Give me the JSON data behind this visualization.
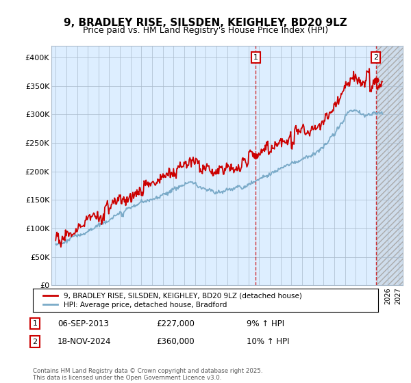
{
  "title": "9, BRADLEY RISE, SILSDEN, KEIGHLEY, BD20 9LZ",
  "subtitle": "Price paid vs. HM Land Registry's House Price Index (HPI)",
  "yticks": [
    0,
    50000,
    100000,
    150000,
    200000,
    250000,
    300000,
    350000,
    400000
  ],
  "ytick_labels": [
    "£0",
    "£50K",
    "£100K",
    "£150K",
    "£200K",
    "£250K",
    "£300K",
    "£350K",
    "£400K"
  ],
  "line1_color": "#cc0000",
  "line2_color": "#7aaac8",
  "plot_bg": "#ddeeff",
  "grid_color": "#aabbcc",
  "legend_label1": "9, BRADLEY RISE, SILSDEN, KEIGHLEY, BD20 9LZ (detached house)",
  "legend_label2": "HPI: Average price, detached house, Bradford",
  "marker1_year": 2013.68,
  "marker1_price": 227000,
  "marker2_year": 2024.88,
  "marker2_price": 360000,
  "footer": "Contains HM Land Registry data © Crown copyright and database right 2025.\nThis data is licensed under the Open Government Licence v3.0.",
  "bg_color": "#ffffff",
  "title_fontsize": 11,
  "subtitle_fontsize": 9
}
